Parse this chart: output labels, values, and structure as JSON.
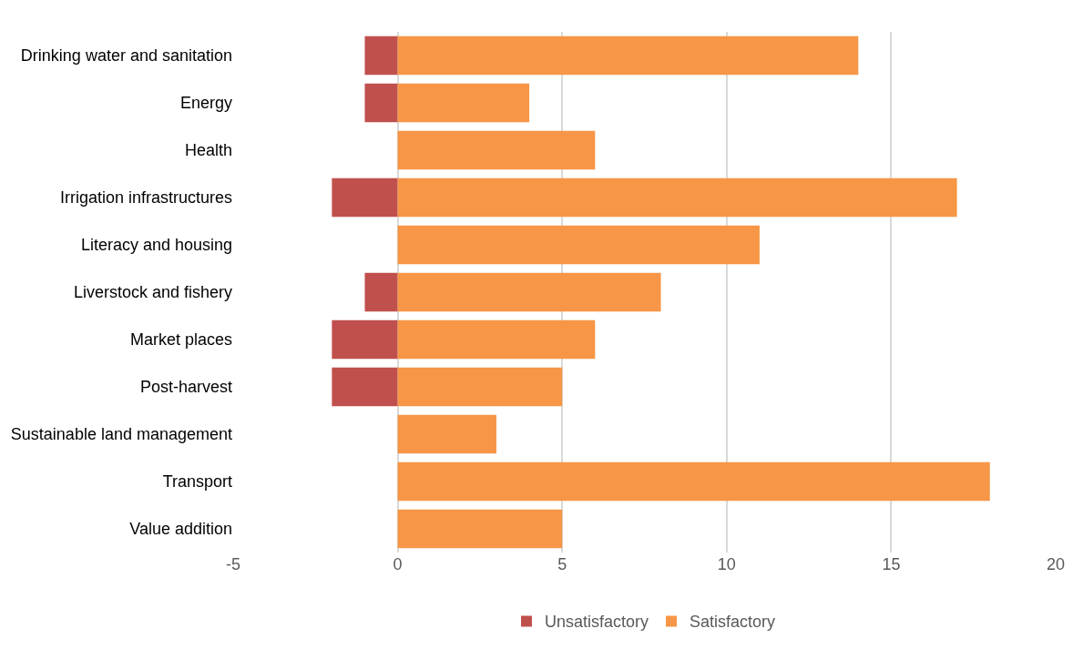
{
  "chart_data": {
    "type": "bar",
    "orientation": "horizontal",
    "stacked": true,
    "categories": [
      "Drinking water and sanitation",
      "Energy",
      "Health",
      "Irrigation infrastructures",
      "Literacy and housing",
      "Liverstock and fishery",
      "Market places",
      "Post-harvest",
      "Sustainable land management",
      "Transport",
      "Value addition"
    ],
    "series": [
      {
        "name": "Unsatisfactory",
        "color": "#c0504d",
        "values": [
          -1,
          -1,
          null,
          -2,
          null,
          -1,
          -2,
          -2,
          null,
          null,
          null
        ]
      },
      {
        "name": "Satisfactory",
        "color": "#f79646",
        "values": [
          14,
          4,
          6,
          17,
          11,
          8,
          6,
          5,
          3,
          18,
          5
        ]
      }
    ],
    "xlim": [
      -5,
      20
    ],
    "xticks": [
      -5,
      0,
      5,
      10,
      15,
      20
    ],
    "grid": "x",
    "legend": "bottom"
  }
}
